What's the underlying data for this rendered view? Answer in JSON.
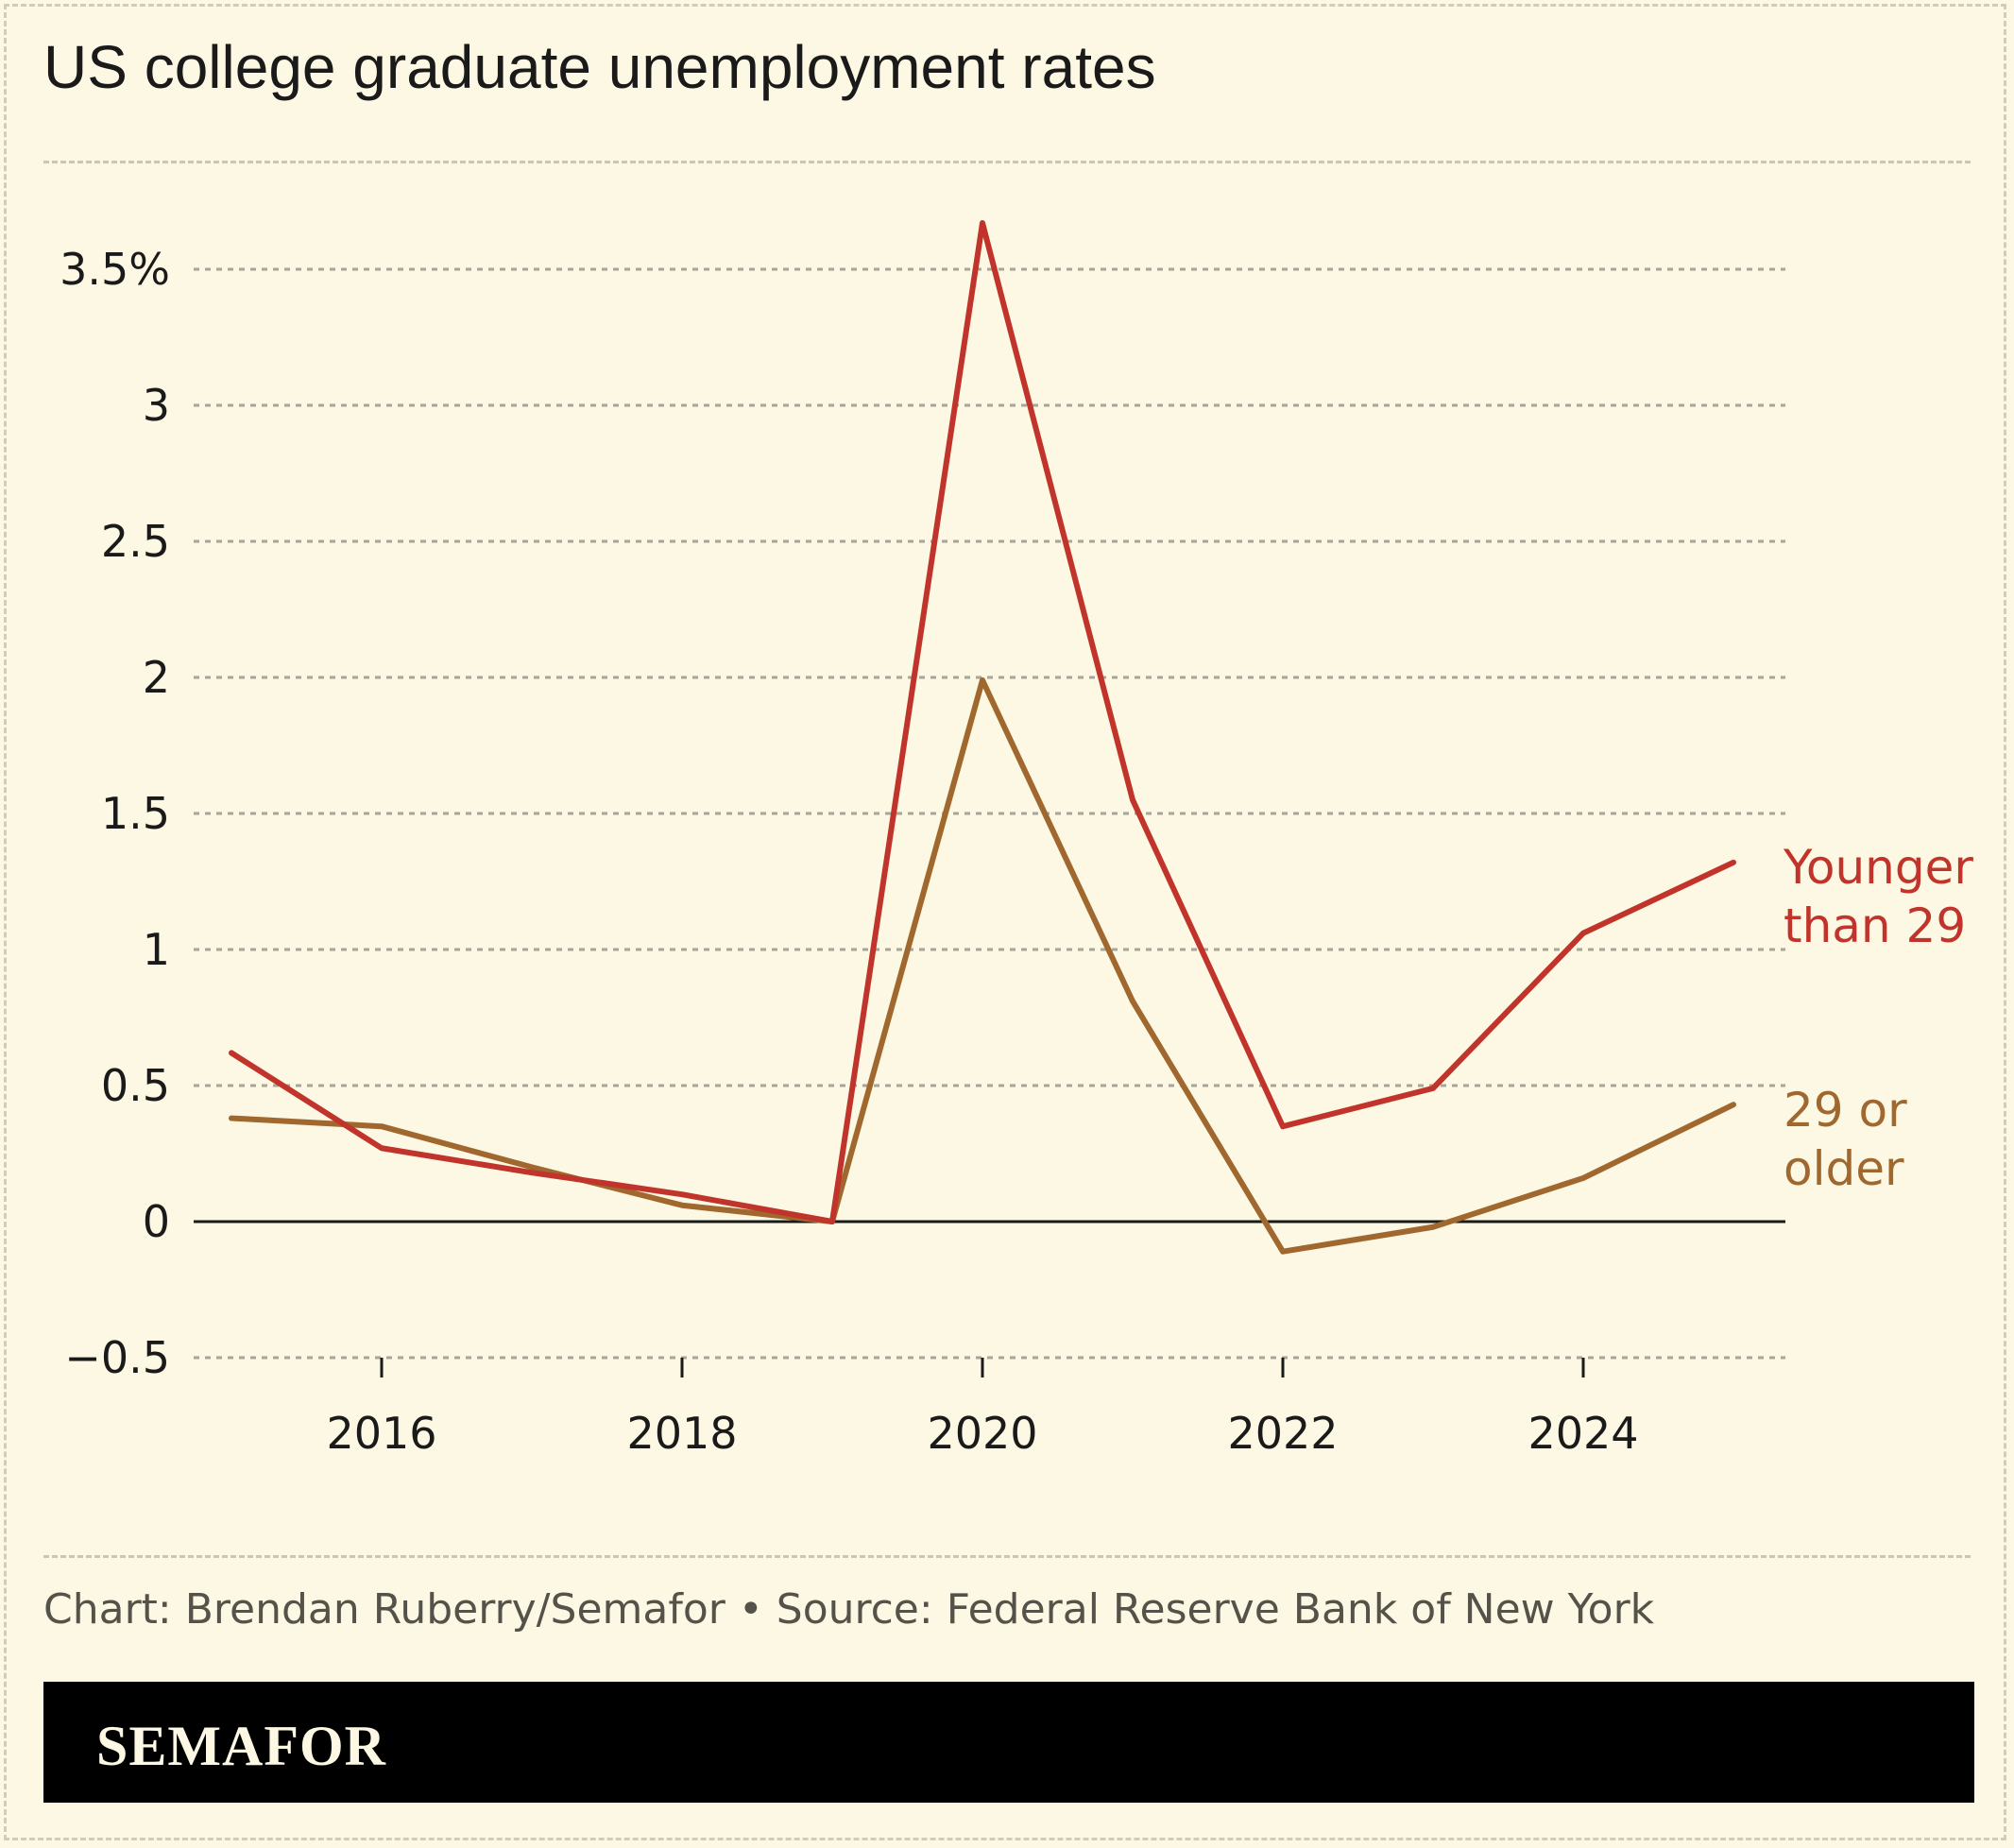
{
  "title": "US college graduate unemployment rates",
  "footer": {
    "credit": "Chart: Brendan Ruberry/Semafor • Source: Federal Reserve Bank of New York"
  },
  "brand": {
    "name": "SEMAFOR"
  },
  "colors": {
    "background": "#fcf8e3",
    "younger": "#c0342b",
    "older": "#a0682e",
    "grid": "#a8a59a",
    "axis": "#1a1a1a"
  },
  "chart_data": {
    "type": "line",
    "title": "US college graduate unemployment rates",
    "x": [
      2015,
      2016,
      2017,
      2018,
      2019,
      2020,
      2021,
      2022,
      2023,
      2024,
      2025
    ],
    "xlim": [
      2015,
      2025
    ],
    "ylim": [
      -0.5,
      3.5
    ],
    "x_ticks": [
      2016,
      2018,
      2020,
      2022,
      2024
    ],
    "x_tick_labels": [
      "2016",
      "2018",
      "2020",
      "2022",
      "2024"
    ],
    "y_ticks": [
      -0.5,
      0,
      0.5,
      1,
      1.5,
      2,
      2.5,
      3,
      3.5
    ],
    "y_tick_labels": [
      "−0.5",
      "0",
      "0.5",
      "1",
      "1.5",
      "2",
      "2.5",
      "3",
      "3.5%"
    ],
    "grid": true,
    "series": [
      {
        "name": "Younger than 29",
        "label_lines": [
          "Younger",
          "than 29"
        ],
        "color": "#c0342b",
        "values": [
          0.62,
          0.27,
          0.18,
          0.1,
          0.0,
          3.67,
          1.55,
          0.35,
          0.49,
          1.06,
          1.32
        ]
      },
      {
        "name": "29 or older",
        "label_lines": [
          "29 or",
          "older"
        ],
        "color": "#a0682e",
        "values": [
          0.38,
          0.35,
          0.2,
          0.06,
          0.0,
          1.99,
          0.81,
          -0.11,
          -0.02,
          0.16,
          0.43
        ]
      }
    ]
  }
}
